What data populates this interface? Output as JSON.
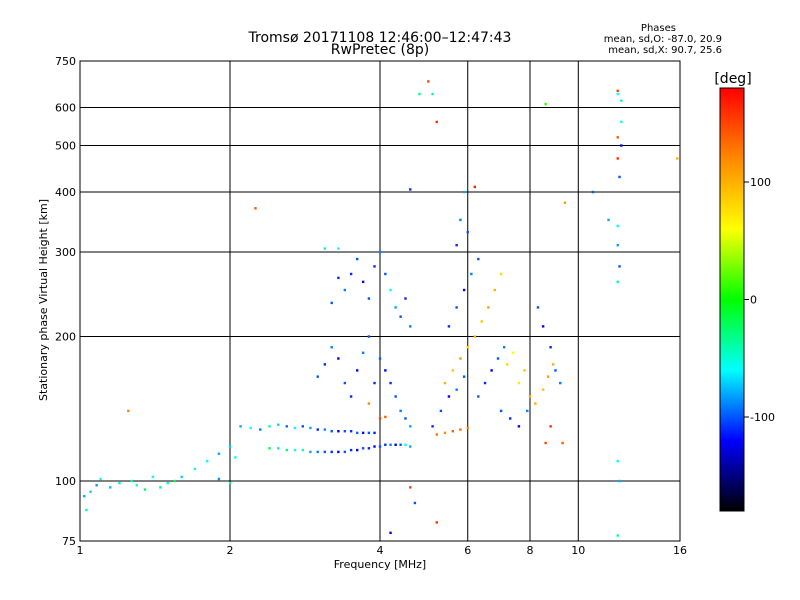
{
  "chart_data": {
    "type": "scatter",
    "title": "Tromsø 20171108 12:46:00–12:47:43",
    "subtitle": "RwPretec (8p)",
    "xlabel": "Frequency [MHz]",
    "ylabel": "Stationary phase Virtual Height [km]",
    "x_scale": "log",
    "y_scale": "log",
    "xlim": [
      1,
      16
    ],
    "ylim": [
      75,
      750
    ],
    "x_ticks": [
      1,
      2,
      4,
      6,
      8,
      10,
      16
    ],
    "y_ticks": [
      75,
      100,
      200,
      300,
      400,
      500,
      600,
      750
    ],
    "grid_x": [
      2,
      4,
      6,
      8,
      10
    ],
    "grid_y": [
      100,
      200,
      300,
      400,
      500,
      600
    ],
    "grid": true,
    "phase_stats": {
      "heading": "Phases",
      "line_o": "mean, sd,O: -87.0, 20.9",
      "line_x": "mean, sd,X:  90.7, 25.6"
    },
    "colorbar": {
      "label": "[deg]",
      "range": [
        -180,
        180
      ],
      "ticks": [
        100,
        0,
        -100
      ],
      "colors": [
        "#ff0000",
        "#ff8800",
        "#ffff00",
        "#00ff00",
        "#00ffff",
        "#0000ff",
        "#000000"
      ]
    },
    "series": [
      {
        "color_scale": "phase",
        "points": [
          [
            1.02,
            93,
            -80
          ],
          [
            1.03,
            87,
            -40
          ],
          [
            1.05,
            95,
            -70
          ],
          [
            1.08,
            98,
            -85
          ],
          [
            1.1,
            101,
            -60
          ],
          [
            1.15,
            97,
            -75
          ],
          [
            1.2,
            99,
            -65
          ],
          [
            1.27,
            100,
            -40
          ],
          [
            1.3,
            98,
            -50
          ],
          [
            1.35,
            96,
            -20
          ],
          [
            1.4,
            102,
            -60
          ],
          [
            1.45,
            97,
            -30
          ],
          [
            1.5,
            99,
            -45
          ],
          [
            1.55,
            100,
            -15
          ],
          [
            1.6,
            102,
            -70
          ],
          [
            1.7,
            106,
            -50
          ],
          [
            1.8,
            110,
            -60
          ],
          [
            1.9,
            114,
            -80
          ],
          [
            2.0,
            118,
            -70
          ],
          [
            2.05,
            112,
            -60
          ],
          [
            1.9,
            101,
            -85
          ],
          [
            2.0,
            99,
            -40
          ],
          [
            1.25,
            140,
            120
          ],
          [
            2.25,
            370,
            140
          ],
          [
            2.1,
            130,
            -80
          ],
          [
            2.2,
            129,
            -60
          ],
          [
            2.3,
            128,
            -90
          ],
          [
            2.4,
            130,
            -40
          ],
          [
            2.5,
            131,
            -70
          ],
          [
            2.6,
            130,
            -95
          ],
          [
            2.7,
            129,
            -60
          ],
          [
            2.8,
            130,
            -100
          ],
          [
            2.9,
            129,
            -80
          ],
          [
            3.0,
            128,
            -110
          ],
          [
            3.1,
            128,
            -90
          ],
          [
            3.2,
            127,
            -100
          ],
          [
            3.3,
            127,
            -120
          ],
          [
            3.4,
            127,
            -100
          ],
          [
            3.5,
            127,
            -110
          ],
          [
            3.6,
            126,
            -95
          ],
          [
            3.7,
            126,
            -120
          ],
          [
            3.8,
            126,
            -100
          ],
          [
            3.9,
            126,
            -115
          ],
          [
            2.4,
            117,
            -20
          ],
          [
            2.5,
            117,
            -40
          ],
          [
            2.6,
            116,
            -30
          ],
          [
            2.7,
            116,
            -60
          ],
          [
            2.8,
            116,
            -50
          ],
          [
            2.9,
            115,
            -80
          ],
          [
            3.0,
            115,
            -90
          ],
          [
            3.1,
            115,
            -100
          ],
          [
            3.2,
            115,
            -110
          ],
          [
            3.3,
            115,
            -120
          ],
          [
            3.4,
            115,
            -100
          ],
          [
            3.5,
            116,
            -110
          ],
          [
            3.6,
            116,
            -120
          ],
          [
            3.7,
            117,
            -100
          ],
          [
            3.8,
            117,
            -110
          ],
          [
            3.9,
            118,
            -120
          ],
          [
            4.0,
            118,
            -100
          ],
          [
            4.1,
            119,
            -110
          ],
          [
            4.2,
            119,
            -90
          ],
          [
            4.3,
            119,
            -120
          ],
          [
            4.4,
            119,
            -100
          ],
          [
            4.5,
            119,
            -60
          ],
          [
            4.6,
            118,
            -80
          ],
          [
            3.0,
            165,
            -100
          ],
          [
            3.1,
            175,
            -110
          ],
          [
            3.2,
            190,
            -90
          ],
          [
            3.3,
            180,
            -120
          ],
          [
            3.4,
            160,
            -100
          ],
          [
            3.5,
            150,
            -110
          ],
          [
            3.6,
            170,
            -120
          ],
          [
            3.7,
            185,
            -90
          ],
          [
            3.8,
            200,
            -100
          ],
          [
            3.9,
            160,
            -110
          ],
          [
            3.2,
            235,
            -100
          ],
          [
            3.4,
            250,
            -90
          ],
          [
            3.5,
            270,
            -110
          ],
          [
            3.6,
            290,
            -100
          ],
          [
            3.7,
            260,
            -120
          ],
          [
            3.8,
            240,
            -100
          ],
          [
            3.9,
            280,
            -110
          ],
          [
            4.0,
            300,
            -90
          ],
          [
            4.1,
            270,
            -100
          ],
          [
            4.2,
            250,
            -60
          ],
          [
            4.3,
            230,
            -80
          ],
          [
            4.4,
            220,
            -100
          ],
          [
            4.5,
            240,
            -110
          ],
          [
            4.6,
            210,
            -90
          ],
          [
            4.0,
            180,
            -100
          ],
          [
            4.1,
            170,
            -120
          ],
          [
            4.2,
            160,
            -110
          ],
          [
            4.3,
            150,
            -100
          ],
          [
            4.4,
            140,
            -90
          ],
          [
            4.5,
            135,
            -100
          ],
          [
            4.6,
            130,
            -80
          ],
          [
            3.3,
            305,
            -60
          ],
          [
            3.1,
            305,
            -40
          ],
          [
            3.3,
            265,
            -110
          ],
          [
            4.0,
            135,
            150
          ],
          [
            4.1,
            136,
            140
          ],
          [
            3.8,
            145,
            120
          ],
          [
            4.6,
            405,
            -110
          ],
          [
            4.6,
            97,
            150
          ],
          [
            4.2,
            78,
            -120
          ],
          [
            4.8,
            640,
            -30
          ],
          [
            5.0,
            680,
            150
          ],
          [
            5.1,
            640,
            -40
          ],
          [
            5.2,
            560,
            160
          ],
          [
            5.2,
            82,
            160
          ],
          [
            4.7,
            90,
            -100
          ],
          [
            5.1,
            130,
            -110
          ],
          [
            5.3,
            140,
            -100
          ],
          [
            5.5,
            150,
            -120
          ],
          [
            5.7,
            155,
            -90
          ],
          [
            5.9,
            165,
            -100
          ],
          [
            5.2,
            125,
            130
          ],
          [
            5.4,
            126,
            120
          ],
          [
            5.6,
            127,
            140
          ],
          [
            5.8,
            128,
            130
          ],
          [
            6.0,
            129,
            120
          ],
          [
            5.4,
            160,
            100
          ],
          [
            5.6,
            170,
            90
          ],
          [
            5.8,
            180,
            110
          ],
          [
            6.0,
            190,
            80
          ],
          [
            6.2,
            200,
            100
          ],
          [
            6.4,
            215,
            90
          ],
          [
            6.6,
            230,
            110
          ],
          [
            6.8,
            250,
            100
          ],
          [
            7.0,
            270,
            80
          ],
          [
            5.5,
            210,
            -110
          ],
          [
            5.7,
            230,
            -100
          ],
          [
            5.9,
            250,
            -120
          ],
          [
            6.1,
            270,
            -90
          ],
          [
            6.3,
            290,
            -100
          ],
          [
            5.7,
            310,
            -110
          ],
          [
            6.0,
            330,
            -100
          ],
          [
            5.8,
            350,
            -90
          ],
          [
            5.9,
            400,
            -80
          ],
          [
            6.2,
            410,
            170
          ],
          [
            6.3,
            150,
            -100
          ],
          [
            6.5,
            160,
            -110
          ],
          [
            6.7,
            170,
            -120
          ],
          [
            6.9,
            180,
            -100
          ],
          [
            7.1,
            190,
            -90
          ],
          [
            7.2,
            175,
            80
          ],
          [
            7.4,
            185,
            60
          ],
          [
            7.6,
            160,
            70
          ],
          [
            7.8,
            170,
            90
          ],
          [
            8.0,
            150,
            100
          ],
          [
            7.0,
            140,
            -100
          ],
          [
            7.3,
            135,
            -110
          ],
          [
            7.6,
            130,
            -120
          ],
          [
            7.9,
            140,
            -90
          ],
          [
            8.2,
            145,
            100
          ],
          [
            8.5,
            155,
            90
          ],
          [
            8.7,
            165,
            110
          ],
          [
            8.9,
            175,
            100
          ],
          [
            8.3,
            230,
            -100
          ],
          [
            8.5,
            210,
            -120
          ],
          [
            8.8,
            190,
            -110
          ],
          [
            9.0,
            170,
            -100
          ],
          [
            9.2,
            160,
            -90
          ],
          [
            8.6,
            120,
            150
          ],
          [
            8.8,
            130,
            160
          ],
          [
            9.3,
            120,
            140
          ],
          [
            8.6,
            610,
            10
          ],
          [
            9.4,
            380,
            110
          ],
          [
            10.7,
            400,
            -100
          ],
          [
            11.5,
            350,
            -80
          ],
          [
            12.0,
            640,
            -60
          ],
          [
            12.0,
            650,
            150
          ],
          [
            12.2,
            620,
            -50
          ],
          [
            12.0,
            520,
            140
          ],
          [
            12.2,
            500,
            -120
          ],
          [
            12.0,
            470,
            160
          ],
          [
            12.1,
            430,
            -100
          ],
          [
            12.0,
            340,
            -60
          ],
          [
            12.0,
            310,
            -80
          ],
          [
            12.1,
            280,
            -100
          ],
          [
            12.0,
            260,
            -40
          ],
          [
            12.1,
            100,
            -80
          ],
          [
            12.0,
            110,
            -60
          ],
          [
            12.0,
            77,
            -40
          ],
          [
            15.8,
            470,
            100
          ],
          [
            12.2,
            560,
            -60
          ]
        ]
      }
    ]
  }
}
